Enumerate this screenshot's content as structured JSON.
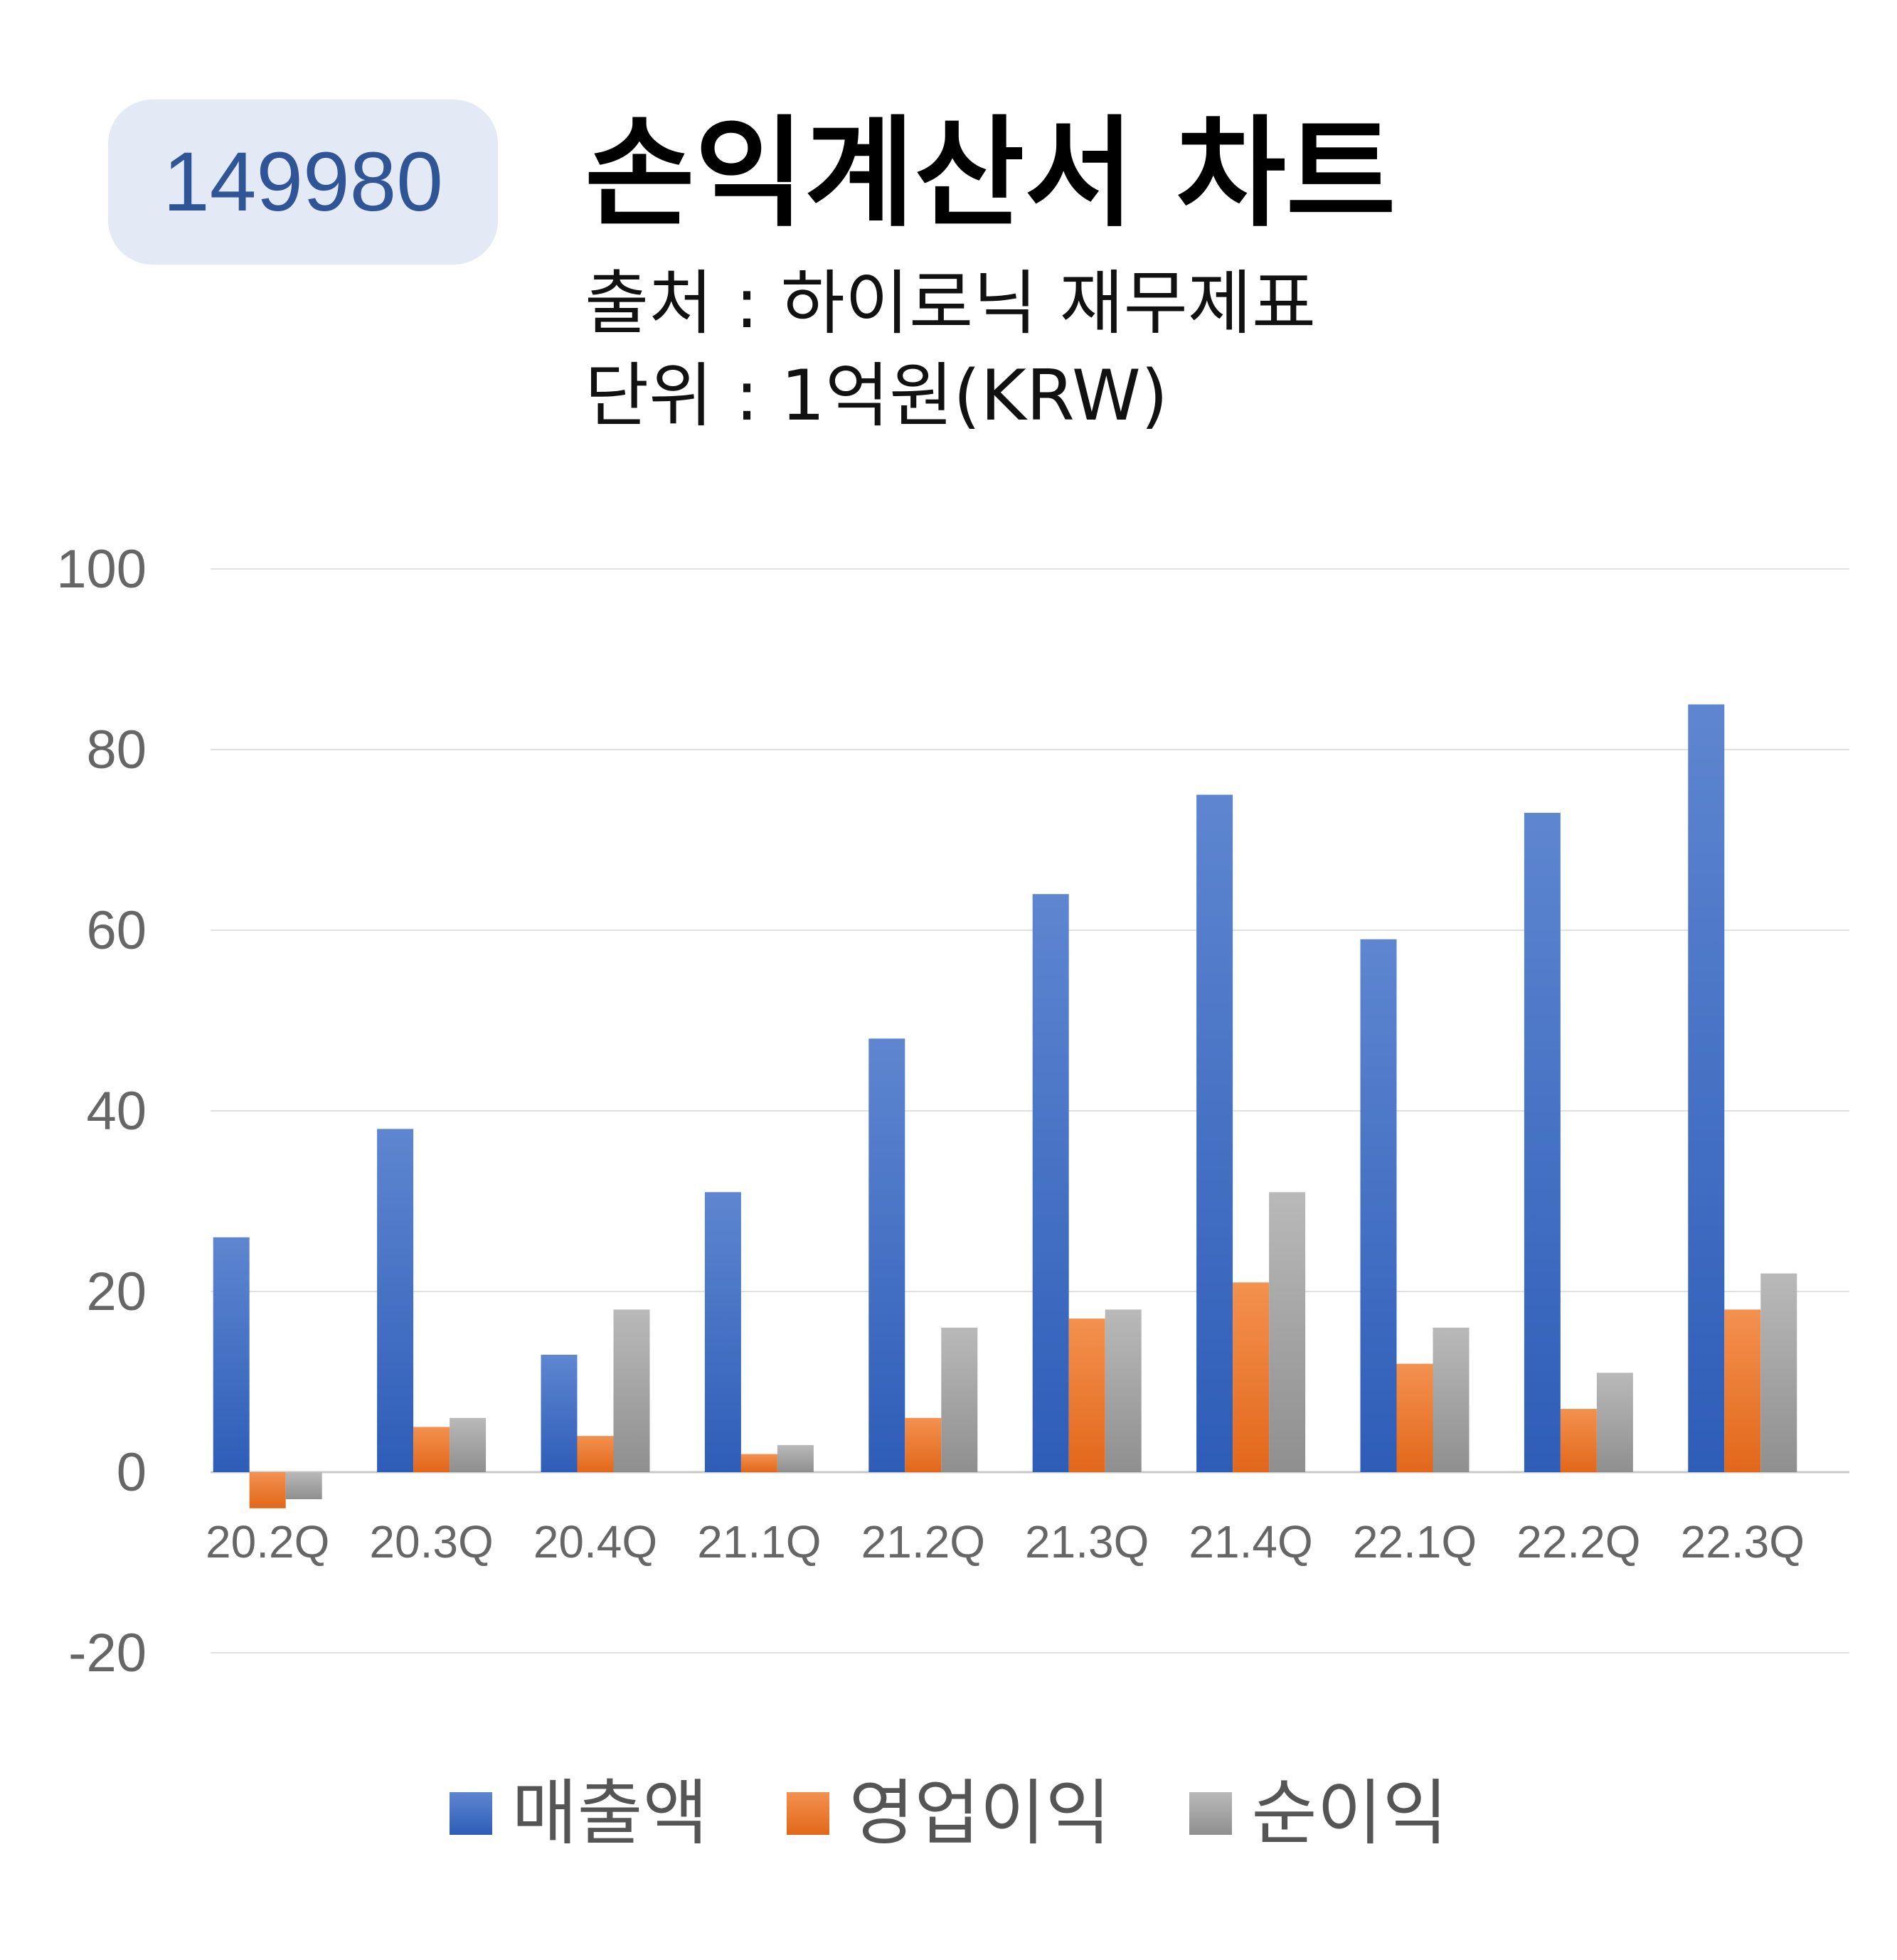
{
  "header": {
    "code": "149980",
    "title": "손익계산서 차트",
    "source": "출처 : 하이로닉 재무제표",
    "unit": "단위 : 1억원(KRW)"
  },
  "chart_data": {
    "type": "bar",
    "categories": [
      "20.2Q",
      "20.3Q",
      "20.4Q",
      "21.1Q",
      "21.2Q",
      "21.3Q",
      "21.4Q",
      "22.1Q",
      "22.2Q",
      "22.3Q"
    ],
    "series": [
      {
        "name": "매출액",
        "color": "#4472c4",
        "values": [
          26,
          38,
          13,
          31,
          48,
          64,
          75,
          59,
          73,
          85
        ]
      },
      {
        "name": "영업이익",
        "color": "#ed7d31",
        "values": [
          -4,
          5,
          4,
          2,
          6,
          17,
          21,
          12,
          7,
          18
        ]
      },
      {
        "name": "순이익",
        "color": "#a5a5a5",
        "values": [
          -3,
          6,
          18,
          3,
          16,
          18,
          31,
          16,
          11,
          22
        ]
      }
    ],
    "yticks": [
      "100",
      "80",
      "60",
      "40",
      "20",
      "0",
      "-20"
    ],
    "ylim": [
      -20,
      100
    ],
    "grid": true,
    "legend_position": "bottom"
  }
}
